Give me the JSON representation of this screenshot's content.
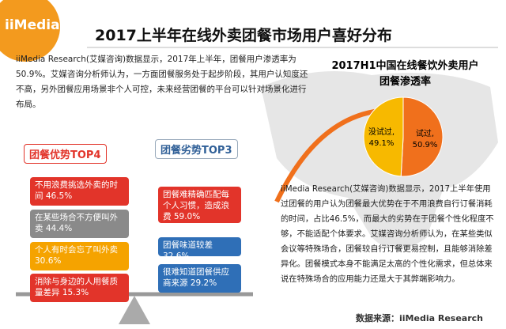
{
  "logo": "iiMedia",
  "header": {
    "title": "2017上半年在线外卖团餐市场用户喜好分布"
  },
  "intro": "iiMedia Research(艾媒咨询)数据显示，2017年上半年，团餐用户渗透率为50.9%。艾媒咨询分析师认为，一方面团餐服务处于起步阶段，其用户认知度还不高，另外团餐应用场景非个人可控，未来经营团餐的平台可以针对场景化进行布局。",
  "chart_data": {
    "type": "pie",
    "title": "2017H1中国在线餐饮外卖用户团餐渗透率",
    "categories": [
      "没试过,",
      "试过,"
    ],
    "values": [
      49.1,
      50.9
    ],
    "value_labels": [
      "49.1%",
      "50.9%"
    ],
    "colors": [
      "#f7b900",
      "#f0701c"
    ]
  },
  "advantages": {
    "title": "团餐优势TOP4",
    "items": [
      "不用浪费挑选外卖的时间 46.5%",
      "在某些场合不方便叫外卖 44.4%",
      "个人有时会忘了叫外卖 30.6%",
      "消除与身边的人用餐质量差异 15.3%"
    ]
  },
  "disadvantages": {
    "title": "团餐劣势TOP3",
    "items": [
      "团餐难精确匹配每个人习惯，造成浪费 59.0%",
      "团餐味道较差 32.6%",
      "很难知道团餐供应商来源 29.2%"
    ]
  },
  "analysis": "iiMedia Research(艾媒咨询)数据显示，2017上半年使用过团餐的用户认为团餐最大优势在于不用浪费自行订餐消耗的时间，占比46.5%，而最大的劣势在于团餐个性化程度不够，不能适配个体要求。艾媒咨询分析师认为，在某些类似会议等特殊场合，团餐较自行订餐更易控制，且能够消除差异化。团餐模式本身不能满足太高的个性化需求，但总体来说在特殊场合的应用能力还是大于其弊端影响力。",
  "source": "数据来源：iiMedia Research"
}
